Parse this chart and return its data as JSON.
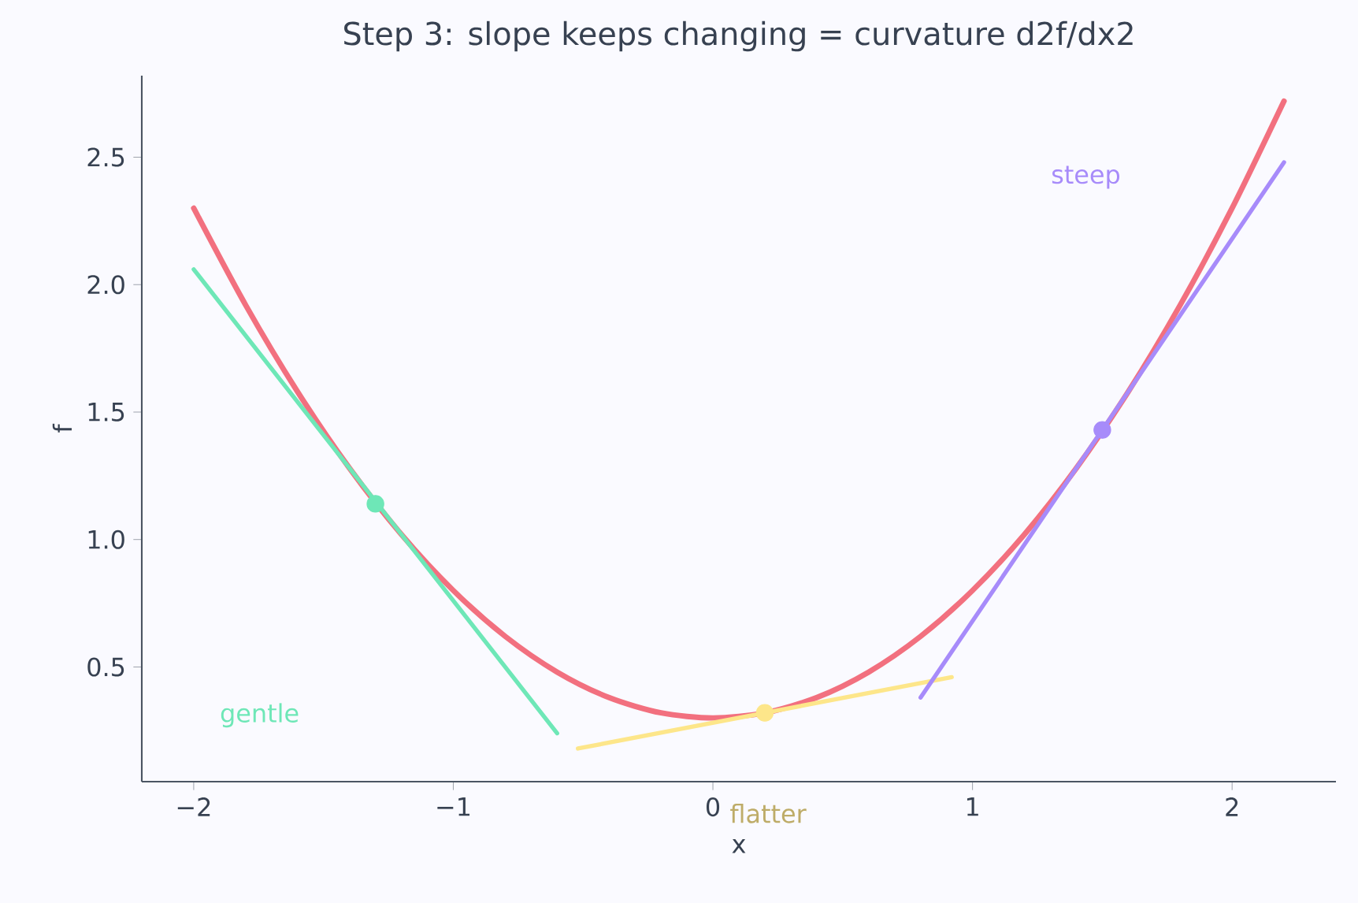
{
  "chart_data": {
    "type": "line",
    "title": "Step 3: slope keeps changing = curvature d2f/dx2",
    "xlabel": "x",
    "ylabel": "f",
    "xlim": [
      -2.2,
      2.4
    ],
    "ylim": [
      0.05,
      2.82
    ],
    "xticks": [
      {
        "value": -2,
        "label": "−2"
      },
      {
        "value": -1,
        "label": "−1"
      },
      {
        "value": 0,
        "label": "0"
      },
      {
        "value": 1,
        "label": "1"
      },
      {
        "value": 2,
        "label": "2"
      }
    ],
    "yticks": [
      {
        "value": 0.5,
        "label": "0.5"
      },
      {
        "value": 1.0,
        "label": "1.0"
      },
      {
        "value": 1.5,
        "label": "1.5"
      },
      {
        "value": 2.0,
        "label": "2.0"
      },
      {
        "value": 2.5,
        "label": "2.5"
      }
    ],
    "grid": false,
    "series": [
      {
        "color": "#f2707f",
        "x": [
          -2,
          -1.8,
          -1.6,
          -1.4,
          -1.2,
          -1,
          -0.8,
          -0.6,
          -0.4,
          -0.2,
          0,
          0.2,
          0.4,
          0.6,
          0.8,
          1,
          1.2,
          1.4,
          1.6,
          1.8,
          2,
          2.2
        ],
        "values": [
          2.3,
          1.92,
          1.58,
          1.28,
          1.02,
          0.8,
          0.62,
          0.48,
          0.38,
          0.32,
          0.3,
          0.32,
          0.38,
          0.48,
          0.62,
          0.8,
          1.02,
          1.28,
          1.58,
          1.92,
          2.3,
          2.72
        ]
      },
      {
        "color": "#6ee7b7",
        "x": [
          -2,
          -0.6
        ],
        "values": [
          2.06,
          0.24
        ]
      },
      {
        "color": "#fde68a",
        "x": [
          -0.52,
          0.92
        ],
        "values": [
          0.18,
          0.46
        ]
      },
      {
        "color": "#a78bfa",
        "x": [
          0.8,
          2.2
        ],
        "values": [
          0.38,
          2.48
        ]
      },
      {
        "type": "scatter",
        "color": "#6ee7b7",
        "x": [
          -1.3
        ],
        "values": [
          1.14
        ]
      },
      {
        "type": "scatter",
        "color": "#fde68a",
        "x": [
          0.2
        ],
        "values": [
          0.32
        ]
      },
      {
        "type": "scatter",
        "color": "#a78bfa",
        "x": [
          1.5
        ],
        "values": [
          1.43
        ]
      }
    ],
    "annotations": [
      "gentle",
      "flatter",
      "steep"
    ]
  }
}
